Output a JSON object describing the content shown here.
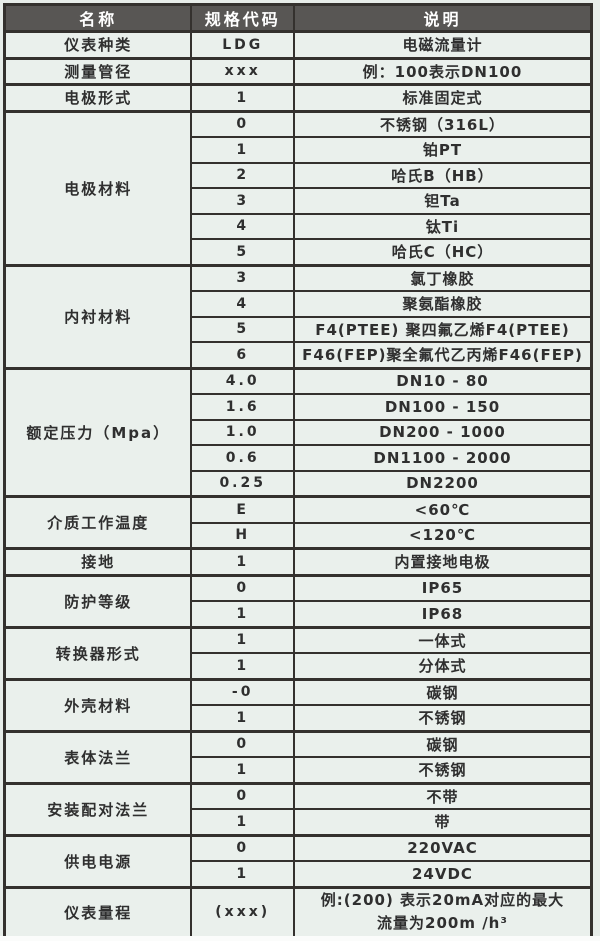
{
  "colors": {
    "header_bg": "#585654",
    "header_text": "#ffffff",
    "table_bg": "#eaf0ec",
    "border": "#34312e",
    "body_text": "#2f2f2f"
  },
  "table": {
    "headers": [
      "名称",
      "规格代码",
      "说明"
    ],
    "groups": [
      {
        "name": "仪表种类",
        "rows": [
          {
            "code": "LDG",
            "desc": "电磁流量计"
          }
        ]
      },
      {
        "name": "测量管径",
        "rows": [
          {
            "code": "xxx",
            "desc": "例：100表示DN100"
          }
        ]
      },
      {
        "name": "电极形式",
        "rows": [
          {
            "code": "1",
            "desc": "标准固定式"
          }
        ]
      },
      {
        "name": "电极材料",
        "rows": [
          {
            "code": "0",
            "desc": "不锈钢（316L）"
          },
          {
            "code": "1",
            "desc": "铂PT"
          },
          {
            "code": "2",
            "desc": "哈氏B（HB）"
          },
          {
            "code": "3",
            "desc": "钽Ta"
          },
          {
            "code": "4",
            "desc": "钛Ti"
          },
          {
            "code": "5",
            "desc": "哈氏C（HC）"
          }
        ]
      },
      {
        "name": "内衬材料",
        "rows": [
          {
            "code": "3",
            "desc": "氯丁橡胶"
          },
          {
            "code": "4",
            "desc": "聚氨酯橡胶"
          },
          {
            "code": "5",
            "desc": "F4(PTEE) 聚四氟乙烯F4(PTEE)"
          },
          {
            "code": "6",
            "desc": "F46(FEP)聚全氟代乙丙烯F46(FEP)"
          }
        ]
      },
      {
        "name": "额定压力（Mpa）",
        "rows": [
          {
            "code": "4.0",
            "desc": "DN10 - 80"
          },
          {
            "code": "1.6",
            "desc": "DN100 - 150"
          },
          {
            "code": "1.0",
            "desc": "DN200 - 1000"
          },
          {
            "code": "0.6",
            "desc": "DN1100 - 2000"
          },
          {
            "code": "0.25",
            "desc": "DN2200"
          }
        ]
      },
      {
        "name": "介质工作温度",
        "rows": [
          {
            "code": "E",
            "desc": "<60℃"
          },
          {
            "code": "H",
            "desc": "<120℃"
          }
        ]
      },
      {
        "name": "接地",
        "rows": [
          {
            "code": "1",
            "desc": "内置接地电极"
          }
        ]
      },
      {
        "name": "防护等级",
        "rows": [
          {
            "code": "0",
            "desc": "IP65"
          },
          {
            "code": "1",
            "desc": "IP68"
          }
        ]
      },
      {
        "name": "转换器形式",
        "rows": [
          {
            "code": "1",
            "desc": "一体式"
          },
          {
            "code": "1",
            "desc": "分体式"
          }
        ]
      },
      {
        "name": "外壳材料",
        "rows": [
          {
            "code": "-0",
            "desc": "碳钢"
          },
          {
            "code": "1",
            "desc": "不锈钢"
          }
        ]
      },
      {
        "name": "表体法兰",
        "rows": [
          {
            "code": "0",
            "desc": "碳钢"
          },
          {
            "code": "1",
            "desc": "不锈钢"
          }
        ]
      },
      {
        "name": "安装配对法兰",
        "rows": [
          {
            "code": "0",
            "desc": "不带"
          },
          {
            "code": "1",
            "desc": "带"
          }
        ]
      },
      {
        "name": "供电电源",
        "rows": [
          {
            "code": "0",
            "desc": "220VAC"
          },
          {
            "code": "1",
            "desc": "24VDC"
          }
        ]
      },
      {
        "name": "仪表量程",
        "rows": [
          {
            "code": "(xxx)",
            "desc": [
              "例:(200) 表示20mA对应的最大",
              "流量为200m /h³"
            ]
          }
        ]
      }
    ]
  }
}
